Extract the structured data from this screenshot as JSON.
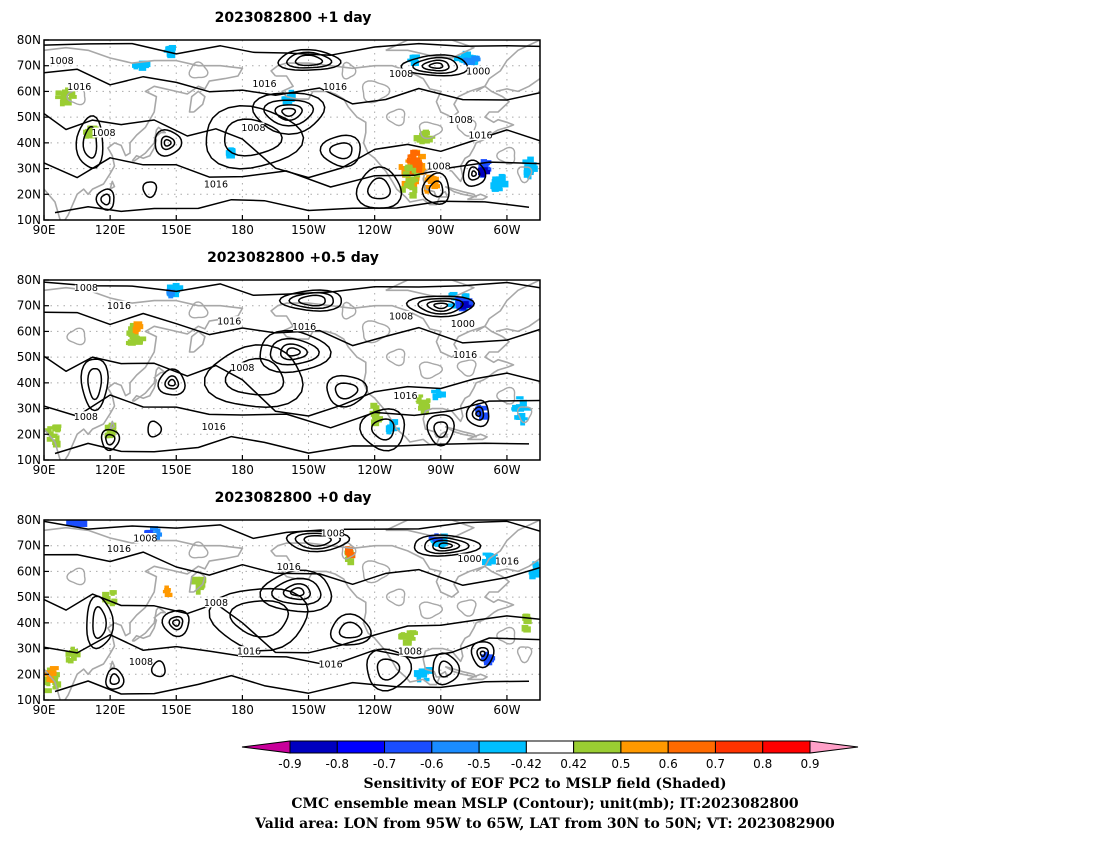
{
  "chart_data": {
    "type": "map",
    "panels": [
      {
        "title": "2023082800 +1 day",
        "contour_labels": [
          {
            "text": "1008",
            "lon": 98,
            "lat": 72
          },
          {
            "text": "1016",
            "lon": 106,
            "lat": 62
          },
          {
            "text": "1008",
            "lon": 117,
            "lat": 44
          },
          {
            "text": "1016",
            "lon": 168,
            "lat": 24
          },
          {
            "text": "1016",
            "lon": 190,
            "lat": 63
          },
          {
            "text": "1008",
            "lon": 185,
            "lat": 46
          },
          {
            "text": "1016",
            "lon": 222,
            "lat": 62
          },
          {
            "text": "1008",
            "lon": 252,
            "lat": 67
          },
          {
            "text": "1000",
            "lon": 287,
            "lat": 68
          },
          {
            "text": "1008",
            "lon": 279,
            "lat": 49
          },
          {
            "text": "1016",
            "lon": 288,
            "lat": 43
          },
          {
            "text": "1008",
            "lon": 269,
            "lat": 31
          }
        ]
      },
      {
        "title": "2023082800 +0.5 day",
        "contour_labels": [
          {
            "text": "1008",
            "lon": 109,
            "lat": 77
          },
          {
            "text": "1016",
            "lon": 124,
            "lat": 70
          },
          {
            "text": "1016",
            "lon": 174,
            "lat": 64
          },
          {
            "text": "1016",
            "lon": 208,
            "lat": 62
          },
          {
            "text": "1008",
            "lon": 180,
            "lat": 46
          },
          {
            "text": "1008",
            "lon": 252,
            "lat": 66
          },
          {
            "text": "1000",
            "lon": 280,
            "lat": 63
          },
          {
            "text": "1016",
            "lon": 281,
            "lat": 51
          },
          {
            "text": "1016",
            "lon": 254,
            "lat": 35
          },
          {
            "text": "1008",
            "lon": 109,
            "lat": 27
          },
          {
            "text": "1016",
            "lon": 167,
            "lat": 23
          }
        ]
      },
      {
        "title": "2023082800 +0 day",
        "contour_labels": [
          {
            "text": "1008",
            "lon": 136,
            "lat": 73
          },
          {
            "text": "1016",
            "lon": 124,
            "lat": 69
          },
          {
            "text": "1016",
            "lon": 201,
            "lat": 62
          },
          {
            "text": "1008",
            "lon": 221,
            "lat": 75
          },
          {
            "text": "1008",
            "lon": 168,
            "lat": 48
          },
          {
            "text": "1008",
            "lon": 278,
            "lat": 82
          },
          {
            "text": "1000",
            "lon": 283,
            "lat": 65
          },
          {
            "text": "1016",
            "lon": 300,
            "lat": 64
          },
          {
            "text": "1016",
            "lon": 183,
            "lat": 29
          },
          {
            "text": "1016",
            "lon": 220,
            "lat": 24
          },
          {
            "text": "1008",
            "lon": 256,
            "lat": 29
          },
          {
            "text": "1008",
            "lon": 134,
            "lat": 25
          }
        ]
      }
    ],
    "x_ticks": [
      "90E",
      "120E",
      "150E",
      "180",
      "150W",
      "120W",
      "90W",
      "60W"
    ],
    "x_tick_lons": [
      90,
      120,
      150,
      180,
      210,
      240,
      270,
      300
    ],
    "y_ticks": [
      "10N",
      "20N",
      "30N",
      "40N",
      "50N",
      "60N",
      "70N",
      "80N"
    ],
    "y_tick_lats": [
      10,
      20,
      30,
      40,
      50,
      60,
      70,
      80
    ],
    "xlim": [
      90,
      315
    ],
    "ylim": [
      10,
      80
    ],
    "colorbar": {
      "labels": [
        "-0.9",
        "-0.8",
        "-0.7",
        "-0.6",
        "-0.5",
        "-0.42",
        "0.42",
        "0.5",
        "0.6",
        "0.7",
        "0.8",
        "0.9"
      ],
      "colors": [
        "#c8009a",
        "#0000c0",
        "#0000ff",
        "#1a4dff",
        "#1a8cff",
        "#00bfff",
        "#ffffff",
        "#9acd32",
        "#ff9900",
        "#ff6a00",
        "#ff3300",
        "#ff0000",
        "#ffa0c8"
      ]
    },
    "captions": [
      "Sensitivity of EOF PC2 to MSLP field (Shaded)",
      "CMC ensemble mean MSLP (Contour); unit(mb); IT:2023082800",
      "Valid area: LON from 95W to 65W, LAT from 30N to 50N; VT: 2023082900"
    ]
  }
}
